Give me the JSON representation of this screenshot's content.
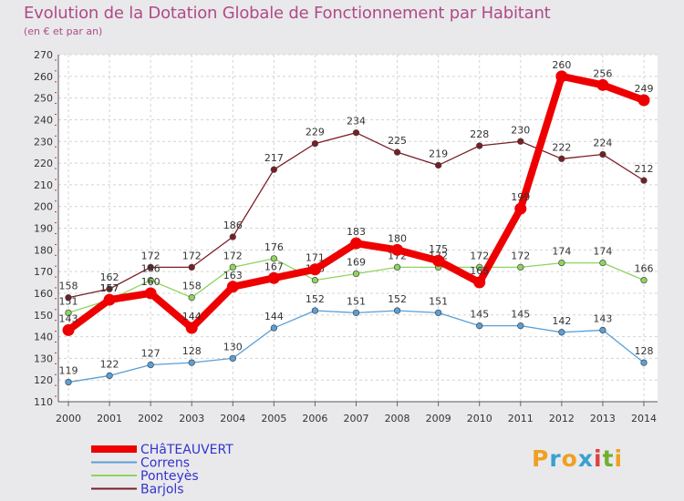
{
  "chart_data": {
    "type": "line",
    "title": "Evolution de la Dotation Globale de Fonctionnement par Habitant",
    "subtitle": "(en € et par an)",
    "x": [
      2000,
      2001,
      2002,
      2003,
      2004,
      2005,
      2006,
      2007,
      2008,
      2009,
      2010,
      2011,
      2012,
      2013,
      2014
    ],
    "ylim": [
      110,
      270
    ],
    "yticks": [
      110,
      120,
      130,
      140,
      150,
      160,
      170,
      180,
      190,
      200,
      210,
      220,
      230,
      240,
      250,
      260,
      270
    ],
    "series": [
      {
        "name": "Barjols",
        "color": "#7a1e25",
        "values": [
          158,
          162,
          172,
          172,
          186,
          217,
          229,
          234,
          225,
          219,
          228,
          230,
          222,
          224,
          212
        ]
      },
      {
        "name": "Ponteyès",
        "color": "#8ed45e",
        "values": [
          151,
          157,
          166,
          158,
          172,
          176,
          166,
          169,
          172,
          172,
          172,
          172,
          174,
          174,
          166
        ]
      },
      {
        "name": "Correns",
        "color": "#5a9fd6",
        "values": [
          119,
          122,
          127,
          128,
          130,
          144,
          152,
          151,
          152,
          151,
          145,
          145,
          142,
          143,
          128
        ]
      },
      {
        "name": "CHâTEAUVERT",
        "color": "#ee0000",
        "values": [
          143,
          157,
          160,
          144,
          163,
          167,
          171,
          183,
          180,
          175,
          165,
          199,
          260,
          256,
          249
        ]
      }
    ],
    "legend_order": [
      "CHâTEAUVERT",
      "Correns",
      "Ponteyès",
      "Barjols"
    ],
    "legend_text_color": "#3333cc"
  },
  "brand": {
    "letters": [
      "P",
      "r",
      "o",
      "x",
      "i",
      "t",
      "i"
    ],
    "colors": [
      "#f0a020",
      "#3aa0d0",
      "#f0a020",
      "#3aa0d0",
      "#e04040",
      "#70b030",
      "#f0a020"
    ]
  }
}
